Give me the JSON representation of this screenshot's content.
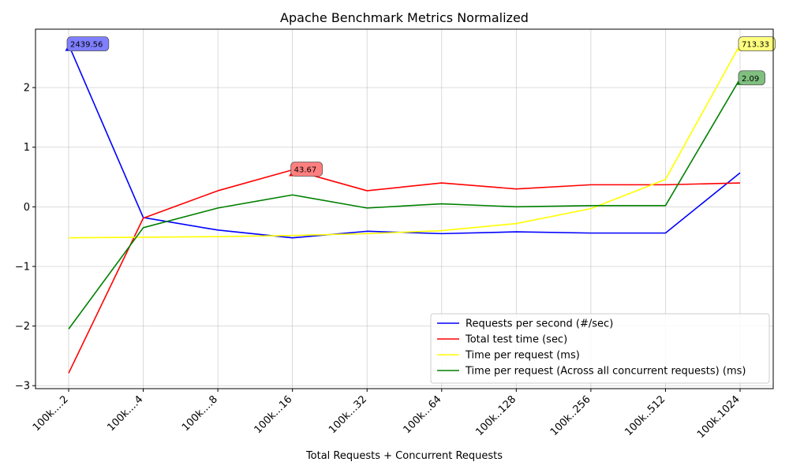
{
  "chart_data": {
    "type": "line",
    "title": "Apache Benchmark Metrics Normalized",
    "xlabel": "Total Requests + Concurrent Requests",
    "ylabel": "",
    "categories": [
      "100k....2",
      "100k....4",
      "100k....8",
      "100k...16",
      "100k...32",
      "100k...64",
      "100k..128",
      "100k..256",
      "100k..512",
      "100k.1024"
    ],
    "ylim": [
      -3.05,
      2.98
    ],
    "yticks": [
      -3,
      -2,
      -1,
      0,
      1,
      2
    ],
    "ytick_labels": [
      "−3",
      "−2",
      "−1",
      "0",
      "1",
      "2"
    ],
    "grid": true,
    "legend_position": "lower-right",
    "series": [
      {
        "name": "Requests per second (#/sec)",
        "color": "#0000ff",
        "values": [
          2.72,
          -0.18,
          -0.39,
          -0.52,
          -0.41,
          -0.45,
          -0.42,
          -0.44,
          -0.44,
          0.57
        ],
        "annotation": {
          "index": 0,
          "text": "2439.56",
          "bg": "#7f7fff"
        }
      },
      {
        "name": "Total test time (sec)",
        "color": "#ff0000",
        "values": [
          -2.79,
          -0.19,
          0.27,
          0.62,
          0.27,
          0.4,
          0.3,
          0.37,
          0.37,
          0.4
        ],
        "annotation": {
          "index": 3,
          "text": "43.67",
          "bg": "#ff7f7f"
        }
      },
      {
        "name": "Time per request (ms)",
        "color": "#ffff00",
        "values": [
          -0.52,
          -0.51,
          -0.5,
          -0.48,
          -0.45,
          -0.4,
          -0.28,
          -0.03,
          0.46,
          2.72
        ],
        "annotation": {
          "index": 9,
          "text": "713.33",
          "bg": "#ffff7f"
        }
      },
      {
        "name": "Time per request (Across all concurrent requests) (ms)",
        "color": "#008000",
        "values": [
          -2.05,
          -0.35,
          -0.02,
          0.2,
          -0.02,
          0.05,
          0.0,
          0.02,
          0.02,
          2.15
        ],
        "annotation": {
          "index": 9,
          "text": "2.09",
          "bg": "#7fbf7f"
        }
      }
    ]
  }
}
